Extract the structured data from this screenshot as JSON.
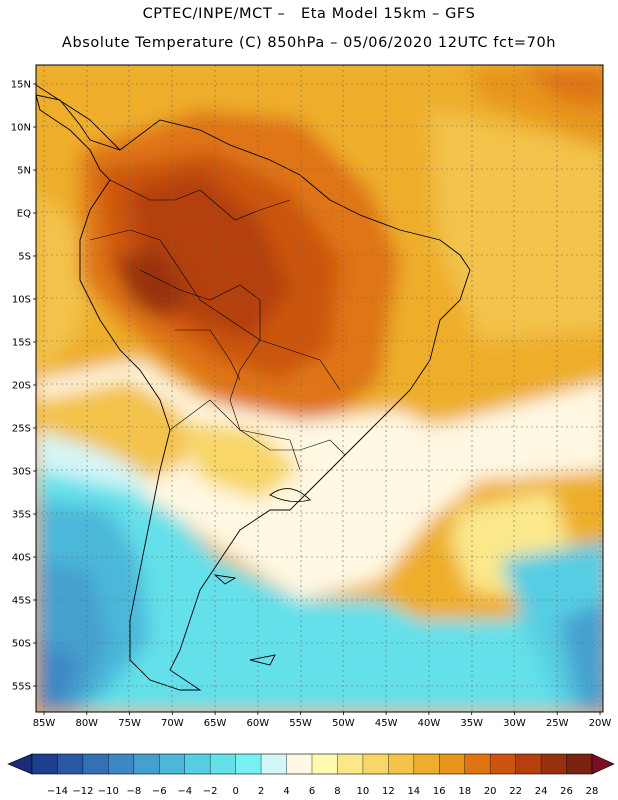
{
  "header": {
    "title_line1": "CPTEC/INPE/MCT –   Eta Model 15km – GFS",
    "title_line2": "Absolute Temperature (C) 850hPa – 05/06/2020 12UTC fct=70h"
  },
  "map": {
    "lat_labels": [
      "15N",
      "10N",
      "5N",
      "EQ",
      "5S",
      "10S",
      "15S",
      "20S",
      "25S",
      "30S",
      "35S",
      "40S",
      "45S",
      "50S",
      "55S"
    ],
    "lon_labels": [
      "85W",
      "80W",
      "75W",
      "70W",
      "65W",
      "60W",
      "55W",
      "50W",
      "45W",
      "40W",
      "35W",
      "30W",
      "25W",
      "20W"
    ]
  },
  "colorbar": {
    "labels": [
      "−14",
      "−12",
      "−10",
      "−8",
      "−6",
      "−4",
      "−2",
      "0",
      "2",
      "4",
      "6",
      "8",
      "10",
      "12",
      "14",
      "16",
      "18",
      "20",
      "22",
      "24",
      "26",
      "28"
    ],
    "colors": [
      "#1d3f8f",
      "#2a58a3",
      "#3470b5",
      "#3d87c4",
      "#44a0cf",
      "#4cb8d9",
      "#56cde2",
      "#64e0ea",
      "#78f0f2",
      "#d5f6f8",
      "#fff8e2",
      "#fffab0",
      "#fbe88a",
      "#f8d668",
      "#f3c34b",
      "#eeae2c",
      "#e7951a",
      "#df7412",
      "#cc5410",
      "#b3400d",
      "#983010",
      "#7a2210"
    ],
    "low_arrow_color": "#1b2b7a",
    "high_arrow_color": "#7a0e22"
  },
  "colors": {
    "land_border": "#000000",
    "grid": "#6a6a6a",
    "frame": "#000000"
  }
}
